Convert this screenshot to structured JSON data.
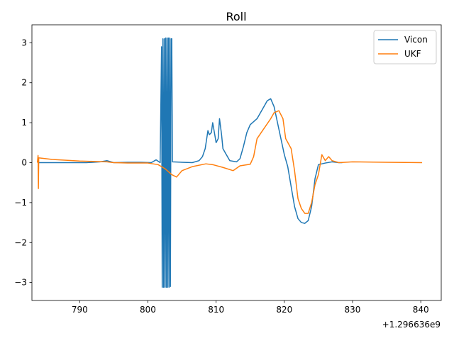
{
  "chart_data": {
    "type": "line",
    "title": "Roll",
    "xlabel": "",
    "ylabel": "",
    "x_offset_label": "+1.296636e9",
    "xlim": [
      783,
      843
    ],
    "ylim": [
      -3.45,
      3.45
    ],
    "x_ticks": [
      790,
      800,
      810,
      820,
      830,
      840
    ],
    "y_ticks": [
      -3,
      -2,
      -1,
      0,
      1,
      2,
      3
    ],
    "grid": false,
    "legend_position": "top-right",
    "series": [
      {
        "name": "Vicon",
        "color": "#1f77b4",
        "points": [
          [
            784.0,
            0.0
          ],
          [
            788.0,
            0.0
          ],
          [
            791.0,
            0.0
          ],
          [
            793.0,
            0.02
          ],
          [
            794.0,
            0.05
          ],
          [
            795.0,
            0.0
          ],
          [
            797.0,
            0.01
          ],
          [
            799.0,
            0.01
          ],
          [
            800.5,
            0.0
          ],
          [
            801.2,
            0.07
          ],
          [
            801.8,
            0.0
          ],
          [
            802.0,
            2.9
          ],
          [
            802.1,
            -3.12
          ],
          [
            802.2,
            3.1
          ],
          [
            802.3,
            -3.12
          ],
          [
            802.4,
            3.1
          ],
          [
            802.5,
            -3.12
          ],
          [
            802.6,
            3.12
          ],
          [
            802.7,
            -3.12
          ],
          [
            802.8,
            3.12
          ],
          [
            802.9,
            -3.12
          ],
          [
            803.0,
            3.12
          ],
          [
            803.1,
            -3.12
          ],
          [
            803.2,
            3.12
          ],
          [
            803.3,
            -3.1
          ],
          [
            803.4,
            3.1
          ],
          [
            803.5,
            3.1
          ],
          [
            803.6,
            0.02
          ],
          [
            805.0,
            0.01
          ],
          [
            806.5,
            0.0
          ],
          [
            807.5,
            0.05
          ],
          [
            808.0,
            0.15
          ],
          [
            808.4,
            0.35
          ],
          [
            808.8,
            0.8
          ],
          [
            809.0,
            0.7
          ],
          [
            809.3,
            0.75
          ],
          [
            809.5,
            1.0
          ],
          [
            809.8,
            0.7
          ],
          [
            810.0,
            0.5
          ],
          [
            810.3,
            0.6
          ],
          [
            810.5,
            1.1
          ],
          [
            810.8,
            0.7
          ],
          [
            811.0,
            0.35
          ],
          [
            811.5,
            0.2
          ],
          [
            812.0,
            0.05
          ],
          [
            813.0,
            0.02
          ],
          [
            813.5,
            0.1
          ],
          [
            814.0,
            0.4
          ],
          [
            814.5,
            0.75
          ],
          [
            815.0,
            0.95
          ],
          [
            816.0,
            1.1
          ],
          [
            817.0,
            1.4
          ],
          [
            817.5,
            1.55
          ],
          [
            818.0,
            1.6
          ],
          [
            818.5,
            1.4
          ],
          [
            819.0,
            1.0
          ],
          [
            819.5,
            0.6
          ],
          [
            820.0,
            0.2
          ],
          [
            820.5,
            -0.1
          ],
          [
            821.0,
            -0.6
          ],
          [
            821.5,
            -1.1
          ],
          [
            822.0,
            -1.4
          ],
          [
            822.5,
            -1.5
          ],
          [
            823.0,
            -1.52
          ],
          [
            823.5,
            -1.45
          ],
          [
            824.0,
            -1.1
          ],
          [
            824.5,
            -0.4
          ],
          [
            825.0,
            -0.05
          ],
          [
            826.0,
            -0.01
          ],
          [
            827.0,
            0.02
          ],
          [
            828.0,
            0.0
          ],
          [
            828.5,
            0.0
          ]
        ]
      },
      {
        "name": "UKF",
        "color": "#ff7f0e",
        "points": [
          [
            783.8,
            0.0
          ],
          [
            783.9,
            0.18
          ],
          [
            783.95,
            -0.65
          ],
          [
            784.0,
            0.12
          ],
          [
            786.0,
            0.08
          ],
          [
            790.0,
            0.04
          ],
          [
            794.0,
            0.02
          ],
          [
            795.0,
            0.0
          ],
          [
            797.0,
            -0.01
          ],
          [
            800.0,
            -0.01
          ],
          [
            801.5,
            -0.05
          ],
          [
            802.5,
            -0.15
          ],
          [
            803.5,
            -0.3
          ],
          [
            804.2,
            -0.36
          ],
          [
            805.0,
            -0.2
          ],
          [
            806.5,
            -0.1
          ],
          [
            808.5,
            -0.03
          ],
          [
            809.5,
            -0.05
          ],
          [
            811.0,
            -0.12
          ],
          [
            812.5,
            -0.2
          ],
          [
            813.5,
            -0.08
          ],
          [
            815.0,
            -0.04
          ],
          [
            815.5,
            0.15
          ],
          [
            816.0,
            0.6
          ],
          [
            817.0,
            0.85
          ],
          [
            818.0,
            1.1
          ],
          [
            818.5,
            1.25
          ],
          [
            819.2,
            1.3
          ],
          [
            819.8,
            1.1
          ],
          [
            820.2,
            0.6
          ],
          [
            821.0,
            0.35
          ],
          [
            821.5,
            -0.2
          ],
          [
            822.0,
            -0.9
          ],
          [
            822.5,
            -1.15
          ],
          [
            823.0,
            -1.27
          ],
          [
            823.5,
            -1.27
          ],
          [
            824.0,
            -1.0
          ],
          [
            824.5,
            -0.55
          ],
          [
            825.0,
            -0.3
          ],
          [
            825.5,
            0.2
          ],
          [
            826.0,
            0.05
          ],
          [
            826.5,
            0.15
          ],
          [
            827.0,
            0.05
          ],
          [
            828.0,
            0.0
          ],
          [
            830.0,
            0.02
          ],
          [
            835.0,
            0.01
          ],
          [
            840.2,
            0.0
          ]
        ]
      }
    ]
  }
}
